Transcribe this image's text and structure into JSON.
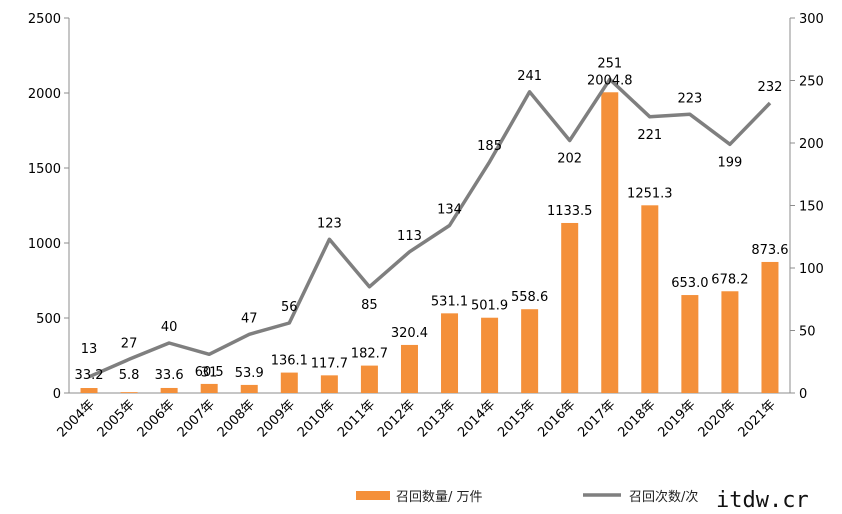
{
  "chart_data": {
    "type": "bar+line",
    "categories": [
      "2004年",
      "2005年",
      "2006年",
      "2007年",
      "2008年",
      "2009年",
      "2010年",
      "2011年",
      "2012年",
      "2013年",
      "2014年",
      "2015年",
      "2016年",
      "2017年",
      "2018年",
      "2019年",
      "2020年",
      "2021年"
    ],
    "series": [
      {
        "name": "召回数量/ 万件",
        "type": "bar",
        "axis": "left",
        "color": "#F4903A",
        "values": [
          33.2,
          5.8,
          33.6,
          60.5,
          53.9,
          136.1,
          117.7,
          182.7,
          320.4,
          531.1,
          501.9,
          558.6,
          1133.5,
          2004.8,
          1251.3,
          653.0,
          678.2,
          873.6
        ],
        "labels": [
          "33.2",
          "5.8",
          "33.6",
          "60.5",
          "53.9",
          "136.1",
          "117.7",
          "182.7",
          "320.4",
          "531.1",
          "501.9",
          "558.6",
          "1133.5",
          "2004.8",
          "1251.3",
          "653.0",
          "678.2",
          "873.6"
        ]
      },
      {
        "name": "召回次数/次",
        "type": "line",
        "axis": "right",
        "color": "#7F7F7F",
        "values": [
          13,
          27,
          40,
          31,
          47,
          56,
          123,
          85,
          113,
          134,
          185,
          241,
          202,
          251,
          221,
          223,
          199,
          232
        ],
        "labels": [
          "13",
          "27",
          "40",
          "31",
          "47",
          "56",
          "123",
          "85",
          "113",
          "134",
          "185",
          "241",
          "202",
          "251",
          "221",
          "223",
          "199",
          "232"
        ]
      }
    ],
    "y_left": {
      "min": 0,
      "max": 2500,
      "ticks": [
        "0",
        "500",
        "1000",
        "1500",
        "2000",
        "2500"
      ]
    },
    "y_right": {
      "min": 0,
      "max": 300,
      "ticks": [
        "0",
        "50",
        "100",
        "150",
        "200",
        "250",
        "300"
      ]
    },
    "grid": false,
    "legend": "bottom"
  },
  "watermark": "itdw.cr"
}
